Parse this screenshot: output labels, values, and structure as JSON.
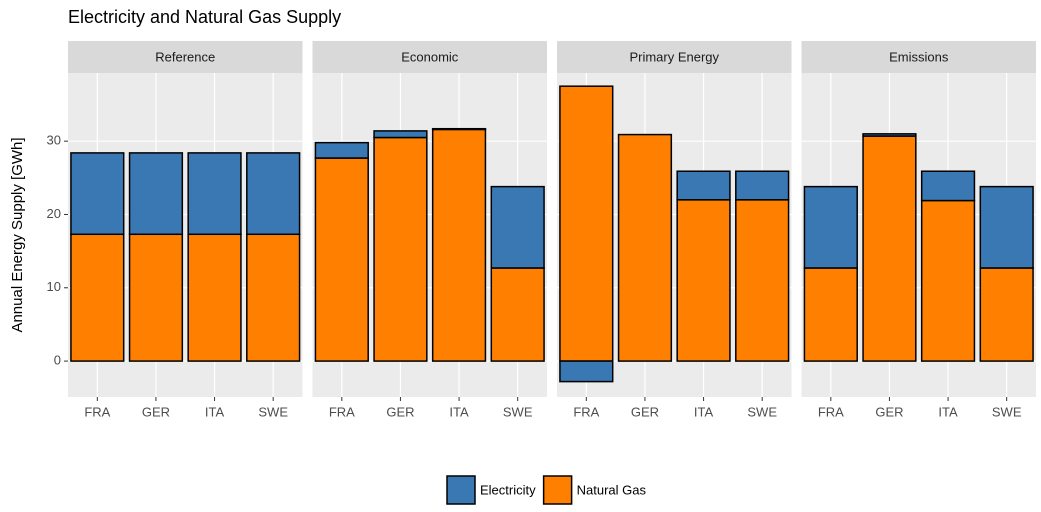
{
  "chart_data": {
    "type": "bar",
    "title": "Electricity and Natural Gas Supply",
    "y_label": "Annual Energy Supply [GWh]",
    "categories": [
      "FRA",
      "GER",
      "ITA",
      "SWE"
    ],
    "series": [
      {
        "name": "Electricity",
        "color": "#3a78b4"
      },
      {
        "name": "Natural Gas",
        "color": "#ff7f00"
      }
    ],
    "ylim": [
      -4.9,
      39.3
    ],
    "yticks": [
      0,
      10,
      20,
      30
    ],
    "grid": true,
    "legend": "bottom",
    "facets": [
      {
        "title": "Reference",
        "values": [
          [
            11.1,
            11.1,
            11.1,
            11.1
          ],
          [
            17.3,
            17.3,
            17.3,
            17.3
          ]
        ]
      },
      {
        "title": "Economic",
        "values": [
          [
            2.1,
            0.9,
            0.1,
            11.1
          ],
          [
            27.7,
            30.5,
            31.6,
            12.7
          ]
        ]
      },
      {
        "title": "Primary Energy",
        "values": [
          [
            -2.8,
            0,
            3.9,
            3.9
          ],
          [
            37.5,
            30.9,
            22.0,
            22.0
          ]
        ]
      },
      {
        "title": "Emissions",
        "values": [
          [
            11.1,
            0.3,
            4.0,
            11.1
          ],
          [
            12.7,
            30.7,
            21.9,
            12.7
          ]
        ]
      }
    ]
  }
}
